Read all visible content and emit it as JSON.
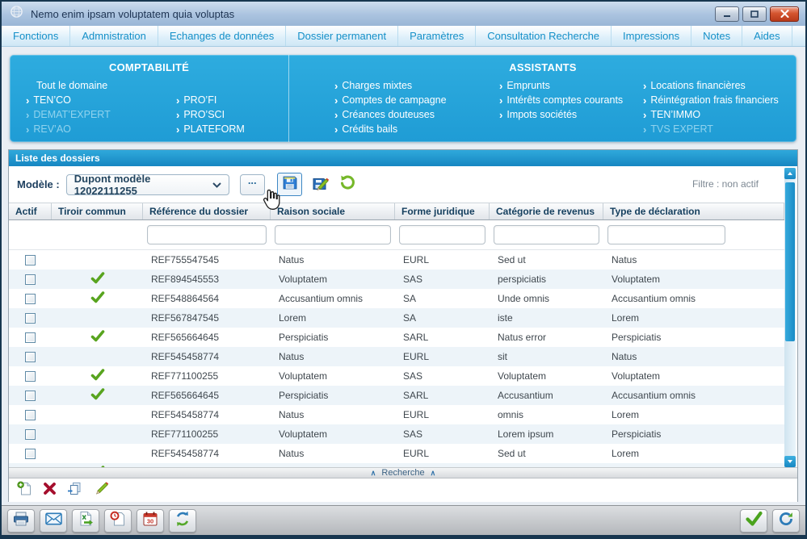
{
  "window": {
    "title": "Nemo enim ipsam voluptatem quia voluptas",
    "controls": [
      {
        "name": "minimize-button",
        "icon": "minimize-icon"
      },
      {
        "name": "maximize-button",
        "icon": "maximize-icon"
      },
      {
        "name": "close-button",
        "icon": "close-icon"
      }
    ],
    "app_icon": "globe-icon"
  },
  "menu": {
    "items": [
      "Fonctions",
      "Admnistration",
      "Echanges de données",
      "Dossier permanent",
      "Paramètres",
      "Consultation Recherche",
      "Impressions",
      "Notes",
      "Aides"
    ]
  },
  "domain_panel": {
    "sections": [
      {
        "title": "COMPTABILITÉ",
        "columns": [
          [
            {
              "label": "Tout le domaine",
              "arrow": false,
              "dimmed": false
            },
            {
              "label": "TEN’CO",
              "arrow": true,
              "dimmed": false
            },
            {
              "label": "DEMAT’EXPERT",
              "arrow": true,
              "dimmed": true
            },
            {
              "label": "REV’AO",
              "arrow": true,
              "dimmed": true
            }
          ],
          [
            {
              "label": "PRO’FI",
              "arrow": true,
              "dimmed": false
            },
            {
              "label": "PRO’SCI",
              "arrow": true,
              "dimmed": false
            },
            {
              "label": "PLATEFORM",
              "arrow": true,
              "dimmed": false
            }
          ]
        ]
      },
      {
        "title": "ASSISTANTS",
        "columns": [
          [
            {
              "label": "Charges mixtes",
              "arrow": true,
              "dimmed": false
            },
            {
              "label": "Comptes de campagne",
              "arrow": true,
              "dimmed": false
            },
            {
              "label": "Créances douteuses",
              "arrow": true,
              "dimmed": false
            },
            {
              "label": "Crédits bails",
              "arrow": true,
              "dimmed": false
            }
          ],
          [
            {
              "label": "Emprunts",
              "arrow": true,
              "dimmed": false
            },
            {
              "label": "Intérêts comptes courants",
              "arrow": true,
              "dimmed": false
            },
            {
              "label": "Impots sociétés",
              "arrow": true,
              "dimmed": false
            }
          ],
          [
            {
              "label": "Locations financières",
              "arrow": true,
              "dimmed": false
            },
            {
              "label": "Réintégration frais financiers",
              "arrow": true,
              "dimmed": false
            },
            {
              "label": "TEN’IMMO",
              "arrow": true,
              "dimmed": false
            },
            {
              "label": "TVS EXPERT",
              "arrow": true,
              "dimmed": true
            }
          ]
        ]
      }
    ]
  },
  "list_panel": {
    "title": "Liste des dossiers",
    "model_label": "Modèle :",
    "model_value": "Dupont modèle 12022111255",
    "model_chevron_icon": "chevron-down-icon",
    "ellipsis_label": "...",
    "toolbar_buttons": [
      {
        "name": "save-model-button",
        "icon": "save-icon"
      },
      {
        "name": "save-model-as-button",
        "icon": "save-edit-icon"
      },
      {
        "name": "reset-model-button",
        "icon": "undo-icon"
      }
    ],
    "filter_status": "Filtre : non actif",
    "search_label": "Recherche",
    "table": {
      "columns": [
        "Actif",
        "Tiroir commun",
        "Référence du dossier",
        "Raison sociale",
        "Forme juridique",
        "Catégorie de revenus",
        "Type de déclaration"
      ],
      "filter_keys": [
        "reference",
        "raison-sociale",
        "forme-juridique",
        "categorie-revenus",
        "type-declaration"
      ],
      "filters": [
        "",
        "",
        "",
        "",
        ""
      ],
      "rows": [
        {
          "actif": false,
          "tiroir": false,
          "reference": "REF755547545",
          "raison_sociale": "Natus",
          "forme_juridique": "EURL",
          "categorie_revenus": "Sed ut",
          "type_declaration": "Natus"
        },
        {
          "actif": false,
          "tiroir": true,
          "reference": "REF894545553",
          "raison_sociale": "Voluptatem",
          "forme_juridique": "SAS",
          "categorie_revenus": "perspiciatis",
          "type_declaration": "Voluptatem"
        },
        {
          "actif": false,
          "tiroir": true,
          "reference": "REF548864564",
          "raison_sociale": "Accusantium omnis",
          "forme_juridique": "SA",
          "categorie_revenus": "Unde omnis",
          "type_declaration": "Accusantium omnis"
        },
        {
          "actif": false,
          "tiroir": false,
          "reference": "REF567847545",
          "raison_sociale": "Lorem",
          "forme_juridique": "SA",
          "categorie_revenus": "iste",
          "type_declaration": "Lorem"
        },
        {
          "actif": false,
          "tiroir": true,
          "reference": "REF565664645",
          "raison_sociale": "Perspiciatis",
          "forme_juridique": "SARL",
          "categorie_revenus": "Natus error",
          "type_declaration": "Perspiciatis"
        },
        {
          "actif": false,
          "tiroir": false,
          "reference": "REF545458774",
          "raison_sociale": "Natus",
          "forme_juridique": "EURL",
          "categorie_revenus": "sit",
          "type_declaration": "Natus"
        },
        {
          "actif": false,
          "tiroir": true,
          "reference": "REF771100255",
          "raison_sociale": "Voluptatem",
          "forme_juridique": "SAS",
          "categorie_revenus": "Voluptatem",
          "type_declaration": "Voluptatem"
        },
        {
          "actif": false,
          "tiroir": true,
          "reference": "REF565664645",
          "raison_sociale": "Perspiciatis",
          "forme_juridique": "SARL",
          "categorie_revenus": "Accusantium",
          "type_declaration": "Accusantium omnis"
        },
        {
          "actif": false,
          "tiroir": false,
          "reference": "REF545458774",
          "raison_sociale": "Natus",
          "forme_juridique": "EURL",
          "categorie_revenus": "omnis",
          "type_declaration": "Lorem"
        },
        {
          "actif": false,
          "tiroir": false,
          "reference": "REF771100255",
          "raison_sociale": "Voluptatem",
          "forme_juridique": "SAS",
          "categorie_revenus": "Lorem ipsum",
          "type_declaration": "Perspiciatis"
        },
        {
          "actif": false,
          "tiroir": false,
          "reference": "REF545458774",
          "raison_sociale": "Natus",
          "forme_juridique": "EURL",
          "categorie_revenus": "Sed ut",
          "type_declaration": "Lorem"
        },
        {
          "actif": false,
          "tiroir": true,
          "reference": "",
          "raison_sociale": "",
          "forme_juridique": "",
          "categorie_revenus": "",
          "type_declaration": ""
        }
      ]
    },
    "action_buttons": [
      {
        "name": "new-dossier-button",
        "icon": "new-doc-icon"
      },
      {
        "name": "delete-dossier-button",
        "icon": "delete-icon"
      },
      {
        "name": "copy-dossier-button",
        "icon": "copy-icon"
      },
      {
        "name": "edit-dossier-button",
        "icon": "edit-pencil-icon"
      }
    ]
  },
  "status_bar": {
    "calendar_day": "30",
    "left_buttons": [
      {
        "name": "print-button",
        "icon": "print-icon"
      },
      {
        "name": "mail-button",
        "icon": "mail-icon"
      },
      {
        "name": "export-button",
        "icon": "export-icon"
      },
      {
        "name": "history-button",
        "icon": "history-icon"
      },
      {
        "name": "calendar-button",
        "icon": "calendar-icon"
      },
      {
        "name": "refresh-button",
        "icon": "refresh-icon"
      }
    ],
    "right_buttons": [
      {
        "name": "validate-button",
        "icon": "validate-icon"
      },
      {
        "name": "reload-button",
        "icon": "reload-icon"
      }
    ]
  },
  "colors": {
    "panel_blue": "#27a5da",
    "header_blue": "#1b8fc9",
    "menu_text": "#1590c8",
    "check_green": "#58a41f",
    "delete_red": "#a50f2d",
    "header_text": "#16405f"
  }
}
